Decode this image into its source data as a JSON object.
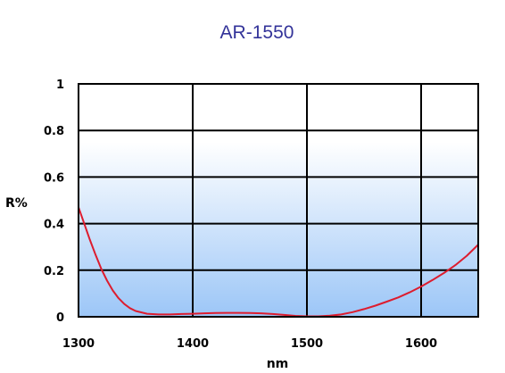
{
  "chart_data": {
    "type": "line",
    "title": "AR-1550",
    "xlabel": "nm",
    "ylabel": "R%",
    "xlim": [
      1300,
      1650
    ],
    "ylim": [
      0,
      1
    ],
    "x_ticks": [
      "1300",
      "1400",
      "1500",
      "1600"
    ],
    "y_ticks": [
      "0",
      "0.2",
      "0.4",
      "0.6",
      "0.8",
      "1"
    ],
    "grid": true,
    "background_gradient": [
      "#ffffff",
      "#9cc6f7"
    ],
    "series": [
      {
        "color": "#dd1c2e",
        "x": [
          1300,
          1305,
          1310,
          1315,
          1320,
          1325,
          1330,
          1335,
          1340,
          1345,
          1350,
          1360,
          1370,
          1380,
          1390,
          1400,
          1410,
          1420,
          1430,
          1440,
          1450,
          1460,
          1470,
          1480,
          1490,
          1500,
          1510,
          1520,
          1530,
          1540,
          1550,
          1560,
          1570,
          1580,
          1590,
          1600,
          1610,
          1620,
          1630,
          1640,
          1650
        ],
        "y": [
          0.47,
          0.4,
          0.33,
          0.265,
          0.205,
          0.155,
          0.113,
          0.08,
          0.055,
          0.037,
          0.025,
          0.013,
          0.01,
          0.01,
          0.012,
          0.013,
          0.015,
          0.016,
          0.017,
          0.017,
          0.016,
          0.015,
          0.012,
          0.008,
          0.004,
          0.002,
          0.002,
          0.005,
          0.01,
          0.02,
          0.033,
          0.048,
          0.065,
          0.083,
          0.105,
          0.13,
          0.158,
          0.188,
          0.222,
          0.262,
          0.31
        ]
      }
    ]
  }
}
